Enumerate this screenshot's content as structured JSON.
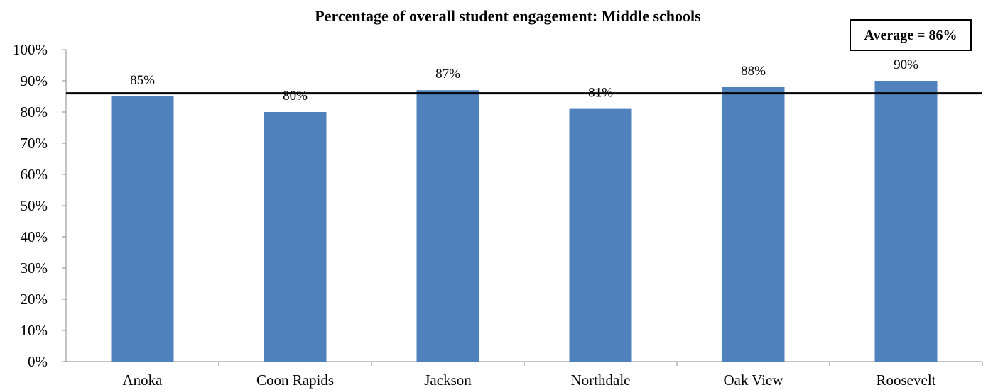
{
  "chart_data": {
    "type": "bar",
    "title": "Percentage of overall student engagement: Middle schools",
    "categories": [
      "Anoka",
      "Coon Rapids",
      "Jackson",
      "Northdale",
      "Oak View",
      "Roosevelt"
    ],
    "values": [
      85,
      80,
      87,
      81,
      88,
      90
    ],
    "data_labels": [
      "85%",
      "80%",
      "87%",
      "81%",
      "88%",
      "90%"
    ],
    "ylim": [
      0,
      100
    ],
    "yticks": [
      0,
      10,
      20,
      30,
      40,
      50,
      60,
      70,
      80,
      90,
      100
    ],
    "ytick_labels": [
      "0%",
      "10%",
      "20%",
      "30%",
      "40%",
      "50%",
      "60%",
      "70%",
      "80%",
      "90%",
      "100%"
    ],
    "xlabel": "",
    "ylabel": "",
    "grid": false,
    "bar_color": "#4f81bd",
    "reference_line": {
      "value": 86,
      "label": "Average = 86%"
    }
  }
}
